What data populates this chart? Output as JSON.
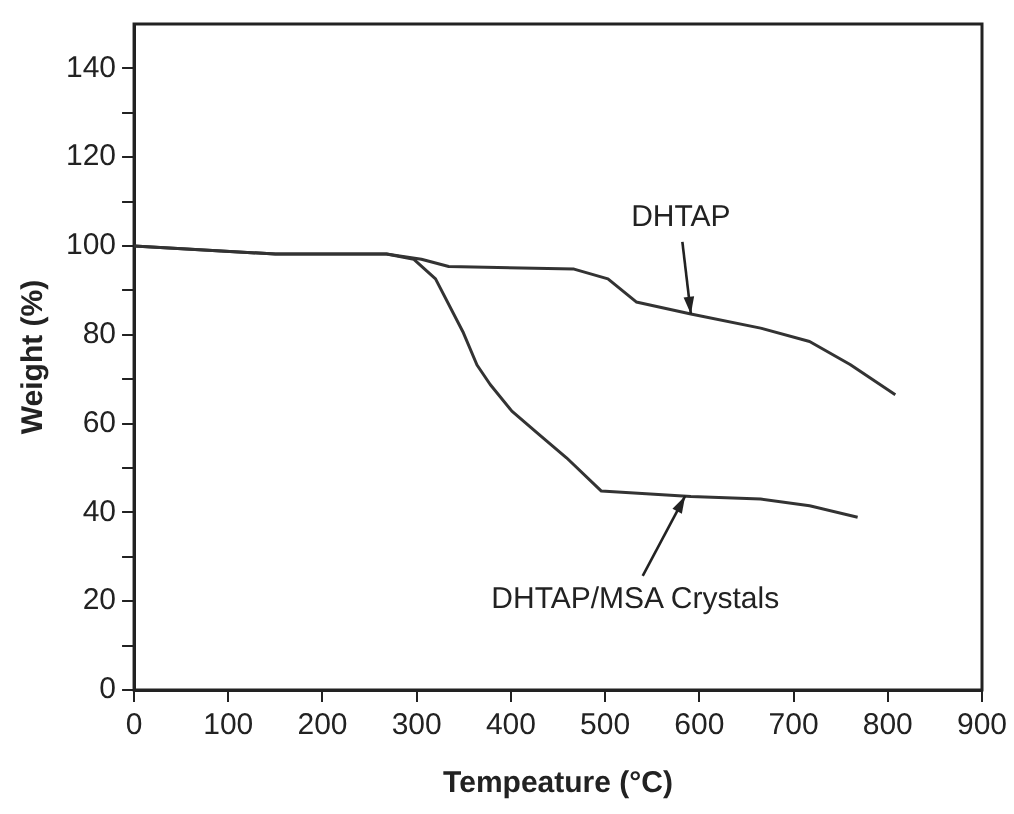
{
  "chart_data": {
    "type": "line",
    "xlabel": "Tempeature (°C)",
    "ylabel": "Weight (%)",
    "xlim": [
      0,
      900
    ],
    "xticks": [
      0,
      100,
      200,
      300,
      400,
      500,
      600,
      700,
      800,
      900
    ],
    "ylim": [
      0,
      150
    ],
    "yticks": [
      0,
      {
        "value": 10,
        "label": null
      },
      20,
      {
        "value": 30,
        "label": null
      },
      40,
      {
        "value": 50,
        "label": null
      },
      60,
      {
        "value": 70,
        "label": null
      },
      80,
      {
        "value": 90,
        "label": null
      },
      100,
      {
        "value": 110,
        "label": null
      },
      120,
      {
        "value": 130,
        "label": null
      },
      140
    ],
    "grid": false,
    "legend": false,
    "marker": "none",
    "line_style": "solid",
    "series": [
      {
        "color": "#333333",
        "x": [
          0,
          150,
          268,
          305,
          334,
          467,
          503,
          533,
          591,
          665,
          717,
          760,
          808
        ],
        "values": [
          100,
          98.2,
          98.2,
          97,
          95.4,
          94.8,
          92.6,
          87.4,
          84.7,
          81.5,
          78.5,
          73.3,
          66.5
        ]
      },
      {
        "color": "#333333",
        "x": [
          0,
          150,
          268,
          297,
          320,
          349,
          364,
          378,
          401,
          430,
          459,
          496,
          522,
          591,
          665,
          717,
          768
        ],
        "values": [
          100,
          98.2,
          98.2,
          97,
          92.6,
          80.7,
          73.2,
          68.8,
          62.8,
          57.5,
          52.3,
          44.8,
          44.5,
          43.6,
          43,
          41.5,
          38.9
        ]
      }
    ],
    "annotations": [
      {
        "text": "DHTAP",
        "x": 591,
        "y": 84.7
      },
      {
        "text": "DHTAP/MSA Crystals",
        "x": 585,
        "y": 43.7
      }
    ]
  }
}
